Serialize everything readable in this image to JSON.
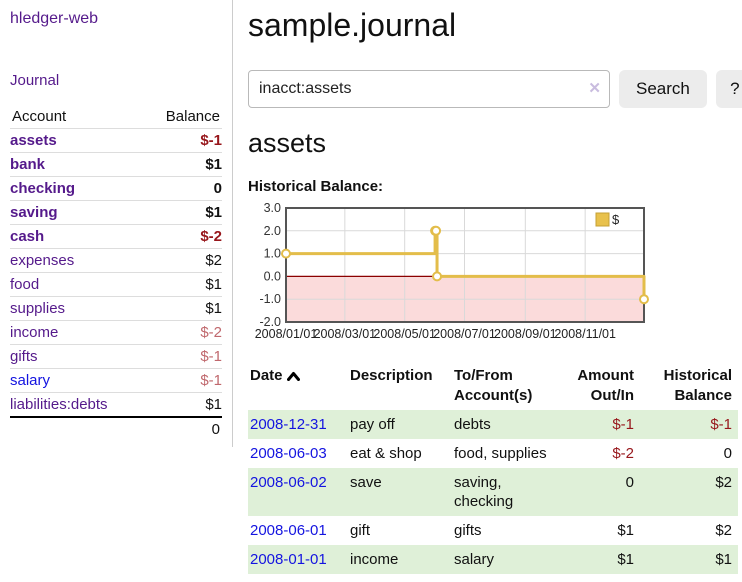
{
  "app_title": "hledger-web",
  "sidebar": {
    "journal_link": "Journal",
    "account_header": "Account",
    "balance_header": "Balance",
    "accounts": [
      {
        "name": "assets",
        "balance": "$-1"
      },
      {
        "name": "bank",
        "balance": "$1"
      },
      {
        "name": "checking",
        "balance": "0"
      },
      {
        "name": "saving",
        "balance": "$1"
      },
      {
        "name": "cash",
        "balance": "$-2"
      },
      {
        "name": "expenses",
        "balance": "$2"
      },
      {
        "name": "food",
        "balance": "$1"
      },
      {
        "name": "supplies",
        "balance": "$1"
      },
      {
        "name": "income",
        "balance": "$-2"
      },
      {
        "name": "gifts",
        "balance": "$-1"
      },
      {
        "name": "salary",
        "balance": "$-1"
      },
      {
        "name": "liabilities:debts",
        "balance": "$1"
      }
    ],
    "total": "0"
  },
  "main": {
    "title": "sample.journal",
    "search": {
      "value": "inacct:assets",
      "clear_icon": "✕",
      "search_button": "Search",
      "help_button": "?"
    },
    "account_heading": "assets",
    "chart_label": "Historical Balance:",
    "register": {
      "headers": {
        "date": "Date",
        "description": "Description",
        "accounts": "To/From Account(s)",
        "amount": "Amount Out/In",
        "balance": "Historical Balance"
      },
      "rows": [
        {
          "date": "2008-12-31",
          "description": "pay off",
          "accounts": "debts",
          "amount": "$-1",
          "balance": "$-1"
        },
        {
          "date": "2008-06-03",
          "description": "eat & shop",
          "accounts": "food, supplies",
          "amount": "$-2",
          "balance": "0"
        },
        {
          "date": "2008-06-02",
          "description": "save",
          "accounts": "saving, checking",
          "amount": "0",
          "balance": "$2"
        },
        {
          "date": "2008-06-01",
          "description": "gift",
          "accounts": "gifts",
          "amount": "$1",
          "balance": "$2"
        },
        {
          "date": "2008-01-01",
          "description": "income",
          "accounts": "salary",
          "amount": "$1",
          "balance": "$1"
        }
      ]
    }
  },
  "chart_data": {
    "type": "line",
    "step": true,
    "title": "Historical Balance",
    "legend": [
      {
        "label": "$",
        "color": "#e8c14c"
      }
    ],
    "x": [
      "2008-01-01",
      "2008-06-01",
      "2008-06-02",
      "2008-06-03",
      "2008-12-31"
    ],
    "series": [
      {
        "name": "$",
        "values": [
          1,
          2,
          2,
          0,
          -1
        ]
      }
    ],
    "ylim": [
      -2.0,
      3.0
    ],
    "yticks": [
      "3.0",
      "2.0",
      "1.0",
      "0.0",
      "-1.0",
      "-2.0"
    ],
    "xticks": [
      "2008/01/01",
      "2008/03/01",
      "2008/05/01",
      "2008/07/01",
      "2008/09/01",
      "2008/11/01"
    ],
    "xrange": [
      "2008-01-01",
      "2008-12-31"
    ],
    "negative_region_fill": "#fbdbdb",
    "line_color": "#e3bd4a",
    "zero_line_color": "#8b0000",
    "grid_color": "#d9d9d9",
    "border_color": "#555555"
  },
  "colors": {
    "link_visited": "#551a8b",
    "link_unvisited": "#1414e0",
    "negative": "#97161b",
    "negative_dim": "#c0686d",
    "row_stripe": "#dff0d8"
  }
}
